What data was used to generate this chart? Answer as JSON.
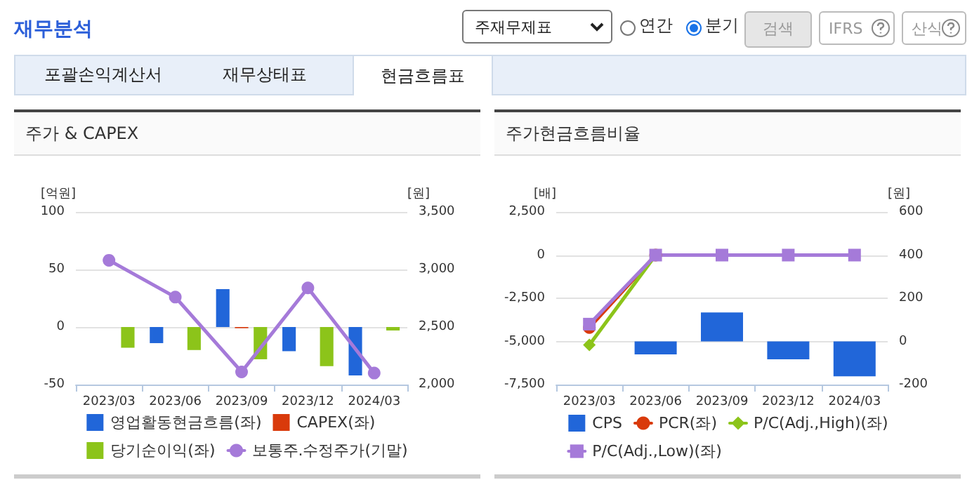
{
  "chart_data": [
    {
      "type": "other",
      "title": "재무분석",
      "annotations": [
        "주재무제표",
        "연간",
        "분기",
        "검색",
        "IFRS",
        "산식",
        "포괄손익계산서",
        "재무상태표",
        "현금흐름표"
      ]
    },
    {
      "type": "bar",
      "title": "주가 & CAPEX",
      "ylabel": "[억원]",
      "y2label": "[원]",
      "categories": [
        "2023/03",
        "2023/06",
        "2023/09",
        "2023/12",
        "2024/03"
      ],
      "series": [
        {
          "name": "영업활동현금흐름(좌)",
          "color": "#2166d9",
          "values": [
            null,
            -14,
            33,
            -21,
            -42
          ]
        },
        {
          "name": "CAPEX(좌)",
          "color": "#d93a0b",
          "values": [
            null,
            null,
            -1,
            null,
            null
          ]
        },
        {
          "name": "당기순이익(좌)",
          "color": "#8cc41a",
          "values": [
            -18,
            -20,
            -28,
            -34,
            -3
          ]
        },
        {
          "name": "보통주.수정주가(기말)",
          "color": "#a57ad9",
          "type": "line",
          "axis": "y2",
          "marker": "circle",
          "values": [
            3080,
            2760,
            2110,
            2840,
            2100
          ]
        }
      ],
      "ylim": [
        -50,
        100
      ],
      "yticks": [
        -50,
        0,
        50,
        100
      ],
      "y2lim": [
        2000,
        3500
      ],
      "y2ticks": [
        {
          "value": 2000,
          "label": "2,000"
        },
        {
          "value": 2500,
          "label": "2,500"
        },
        {
          "value": 3000,
          "label": "3,000"
        },
        {
          "value": 3500,
          "label": "3,500"
        }
      ],
      "grid": "y",
      "legend": "bottom"
    },
    {
      "type": "bar",
      "title": "주가현금흐름비율",
      "ylabel": "[배]",
      "y2label": "[원]",
      "categories": [
        "2023/03",
        "2023/06",
        "2023/09",
        "2023/12",
        "2024/03"
      ],
      "series": [
        {
          "name": "CPS",
          "color": "#2166d9",
          "axis": "y2",
          "values": [
            null,
            -60,
            134,
            -83,
            -162
          ]
        },
        {
          "name": "PCR(좌)",
          "color": "#d93a0b",
          "type": "line",
          "marker": "circle",
          "values": [
            -4200,
            0,
            null,
            null,
            null
          ]
        },
        {
          "name": "P/C(Adj.,High)(좌)",
          "color": "#8cc41a",
          "type": "line",
          "marker": "diamond",
          "values": [
            -5200,
            0,
            null,
            null,
            null
          ]
        },
        {
          "name": "P/C(Adj.,Low)(좌)",
          "color": "#a57ad9",
          "type": "line",
          "marker": "square",
          "values": [
            -4000,
            0,
            0,
            0,
            0
          ]
        }
      ],
      "ylim": [
        -7500,
        2500
      ],
      "yticks": [
        {
          "value": -7500,
          "label": "-7,500"
        },
        {
          "value": -5000,
          "label": "-5,000"
        },
        {
          "value": -2500,
          "label": "-2,500"
        },
        0,
        {
          "value": 2500,
          "label": "2,500"
        }
      ],
      "y2lim": [
        -200,
        600
      ],
      "y2ticks": [
        -200,
        0,
        200,
        400,
        600
      ],
      "grid": "y",
      "legend": "bottom"
    }
  ]
}
